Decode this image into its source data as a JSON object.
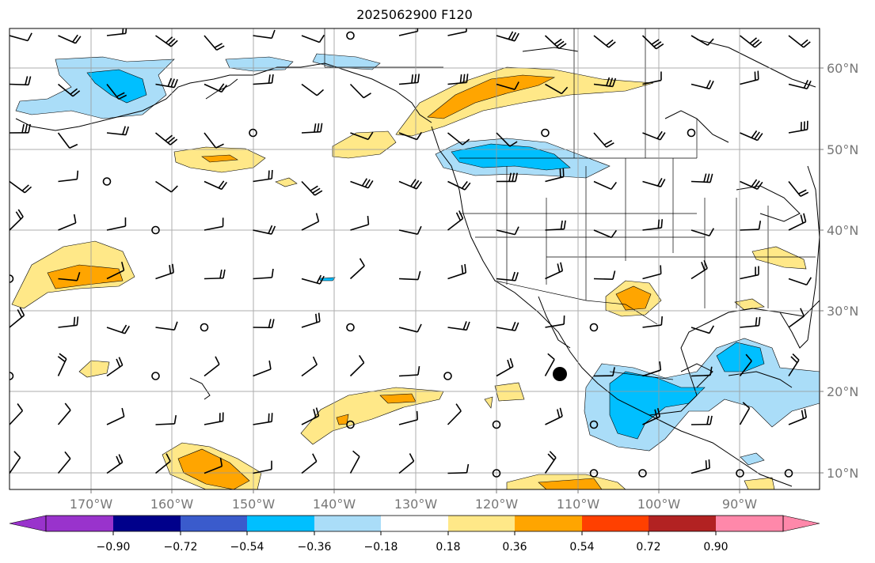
{
  "title": "2025062900 F120",
  "lon_labels": [
    "170°W",
    "160°W",
    "150°W",
    "140°W",
    "130°W",
    "120°W",
    "110°W",
    "100°W",
    "90°W"
  ],
  "lat_labels": [
    "60°N",
    "50°N",
    "40°N",
    "30°N",
    "20°N",
    "10°N"
  ],
  "colorbar": {
    "tick_labels": [
      "−0.90",
      "−0.72",
      "−0.54",
      "−0.36",
      "−0.18",
      "0.18",
      "0.36",
      "0.54",
      "0.72",
      "0.90"
    ],
    "under_color": "#9933cc",
    "over_color": "#ff88aa",
    "colors": [
      "#00008b",
      "#3a5bcc",
      "#00bfff",
      "#aaddf8",
      "#ffffff",
      "#ffe888",
      "#ffa500",
      "#ff4000",
      "#b22222"
    ]
  },
  "fill_colors": {
    "light_blue": "#aaddf8",
    "blue": "#00bfff",
    "light_yellow": "#ffe888",
    "orange": "#ffa500"
  },
  "marker": {
    "label": "black dot",
    "lon": -112.5,
    "lat": 22.5
  }
}
